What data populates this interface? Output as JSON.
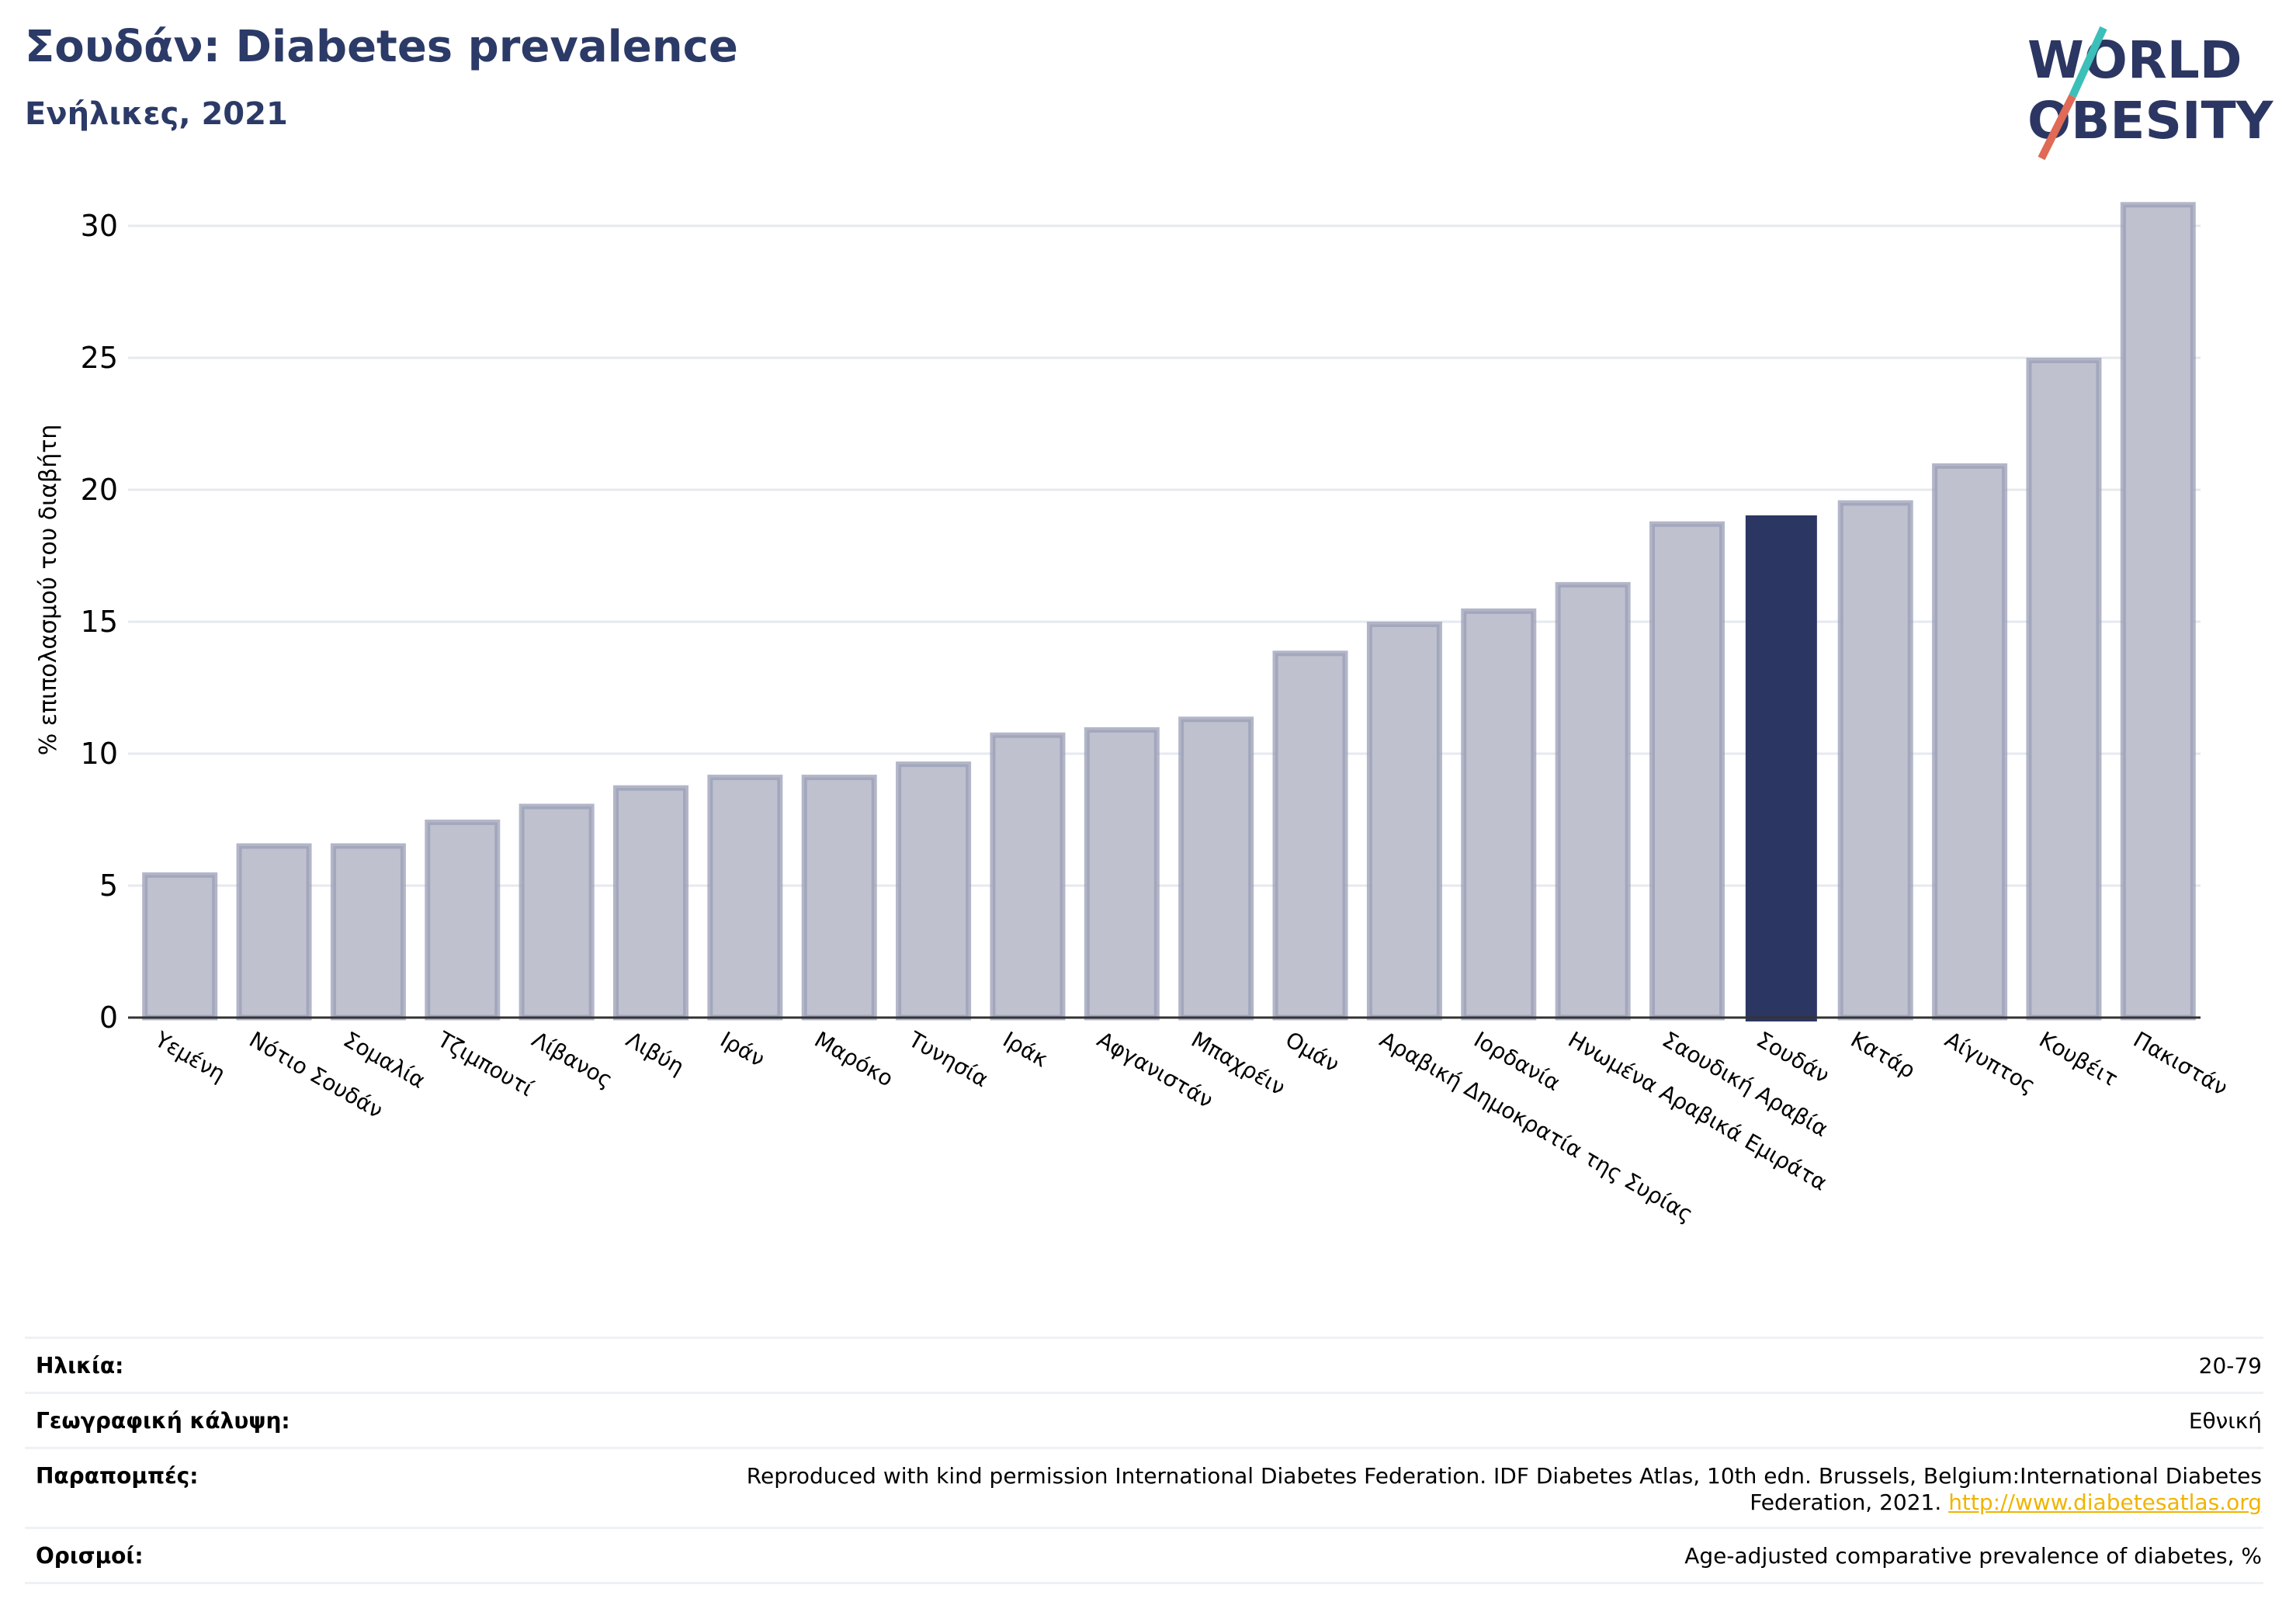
{
  "header": {
    "title": "Σουδάν: Diabetes prevalence",
    "subtitle": "Ενήλικες, 2021"
  },
  "logo": {
    "line1": "WORLD",
    "line2": "OBESITY"
  },
  "chart_data": {
    "type": "bar",
    "ylabel": "% επιπολασμού του διαβήτη",
    "ylim": [
      0,
      32
    ],
    "yticks": [
      0,
      5,
      10,
      15,
      20,
      25,
      30
    ],
    "grid": true,
    "categories": [
      "Υεμένη",
      "Νότιο Σουδάν",
      "Σομαλία",
      "Τζιμπουτί",
      "Λίβανος",
      "Λιβύη",
      "Ιράν",
      "Μαρόκο",
      "Τυνησία",
      "Ιράκ",
      "Αφγανιστάν",
      "Μπαχρέιν",
      "Ομάν",
      "Αραβική Δημοκρατία της Συρίας",
      "Ιορδανία",
      "Ηνωμένα Αραβικά Εμιράτα",
      "Σαουδική Αραβία",
      "Σουδάν",
      "Κατάρ",
      "Αίγυπτος",
      "Κουβέιτ",
      "Πακιστάν"
    ],
    "values": [
      5.4,
      6.5,
      6.5,
      7.4,
      8.0,
      8.7,
      9.1,
      9.1,
      9.6,
      10.7,
      10.9,
      11.3,
      13.8,
      14.9,
      15.4,
      16.4,
      18.7,
      19.0,
      19.5,
      20.9,
      24.9,
      30.8
    ],
    "highlight": "Σουδάν",
    "colors": {
      "bar": "#bfc1cf",
      "bar_border": "#9a9eb6",
      "highlight": "#2b3663"
    }
  },
  "meta": {
    "age_label": "Ηλικία:",
    "age_value": "20-79",
    "coverage_label": "Γεωγραφική κάλυψη:",
    "coverage_value": "Εθνική",
    "refs_label": "Παραπομπές:",
    "refs_line1": "Reproduced with kind permission International Diabetes Federation.  IDF Diabetes Atlas, 10th edn. Brussels, Belgium:International Diabetes",
    "refs_line2": "Federation, 2021.",
    "refs_link": "http://www.diabetesatlas.org",
    "defs_label": "Ορισμοί:",
    "defs_value": "Age-adjusted comparative prevalence of diabetes, %"
  }
}
